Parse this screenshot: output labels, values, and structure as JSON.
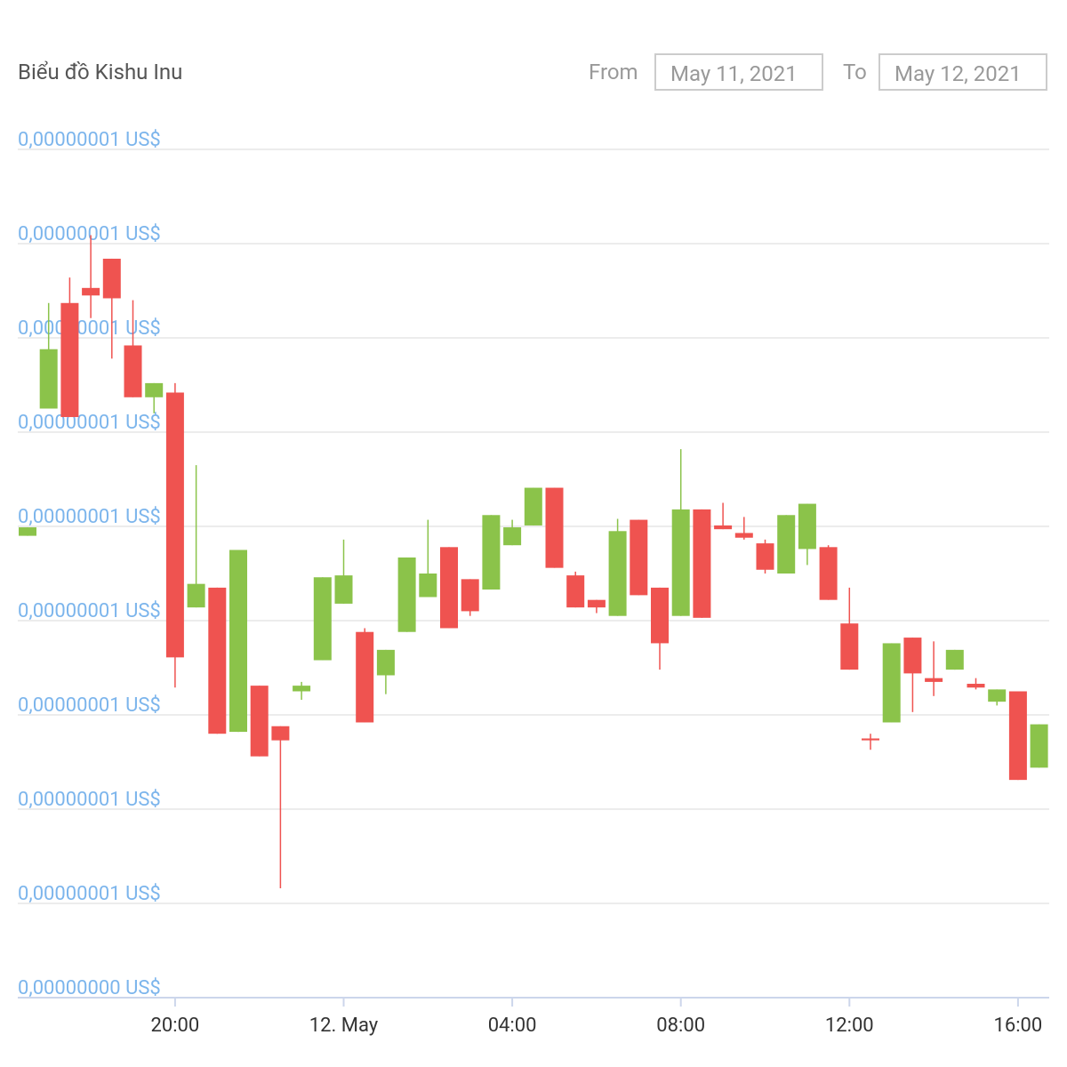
{
  "chart_data": {
    "type": "candlestick",
    "title": "Biểu đồ Kishu Inu",
    "from_label": "From",
    "from": "May 11, 2021",
    "to_label": "To",
    "to": "May 12, 2021",
    "up_color": "#8bc34a",
    "down_color": "#ef5350",
    "grid": true,
    "categories": [
      null,
      null,
      null,
      null,
      null,
      null,
      null,
      "20:00",
      null,
      null,
      null,
      null,
      null,
      null,
      null,
      "12. May",
      null,
      null,
      null,
      null,
      null,
      null,
      null,
      "04:00",
      null,
      null,
      null,
      null,
      null,
      null,
      null,
      "08:00",
      null,
      null,
      null,
      null,
      null,
      null,
      null,
      "12:00",
      null,
      null,
      null,
      null,
      null,
      null,
      null,
      "16:00",
      null
    ],
    "ylim": [
      4.4e-09,
      1.34e-08
    ],
    "yticks": [
      {
        "value": 4.4e-09,
        "label": "0,00000000 US$"
      },
      {
        "value": 5.4e-09,
        "label": "0,00000001 US$"
      },
      {
        "value": 6.4e-09,
        "label": "0,00000001 US$"
      },
      {
        "value": 7.4e-09,
        "label": "0,00000001 US$"
      },
      {
        "value": 8.4e-09,
        "label": "0,00000001 US$"
      },
      {
        "value": 9.4e-09,
        "label": "0,00000001 US$"
      },
      {
        "value": 1.04e-08,
        "label": "0,00000001 US$"
      },
      {
        "value": 1.14e-08,
        "label": "0,00000001 US$"
      },
      {
        "value": 1.24e-08,
        "label": "0,00000001 US$"
      },
      {
        "value": 1.34e-08,
        "label": "0,00000001 US$"
      }
    ],
    "open": [
      9.3e-09,
      1.065e-08,
      1.177e-08,
      1.193e-08,
      1.224e-08,
      1.132e-08,
      1.077e-08,
      1.082e-08,
      8.54e-09,
      8.75e-09,
      7.22e-09,
      7.71e-09,
      7.28e-09,
      7.65e-09,
      7.98e-09,
      8.58e-09,
      8.28e-09,
      7.82e-09,
      8.28e-09,
      8.65e-09,
      9.18e-09,
      8.84e-09,
      8.73e-09,
      9.2e-09,
      9.41e-09,
      9.81e-09,
      8.88e-09,
      8.62e-09,
      8.45e-09,
      9.47e-09,
      8.75e-09,
      8.45e-09,
      9.58e-09,
      9.41e-09,
      9.33e-09,
      9.22e-09,
      8.9e-09,
      9.16e-09,
      9.18e-09,
      8.37e-09,
      7.15e-09,
      7.32e-09,
      8.22e-09,
      7.79e-09,
      7.88e-09,
      7.73e-09,
      7.54e-09,
      7.65e-09,
      6.84e-09
    ],
    "high": [
      9.39e-09,
      1.177e-08,
      1.204e-08,
      1.249e-08,
      1.224e-08,
      1.18e-08,
      1.092e-08,
      1.092e-08,
      1.005e-08,
      8.75e-09,
      9.15e-09,
      7.71e-09,
      7.28e-09,
      7.75e-09,
      8.86e-09,
      9.26e-09,
      8.32e-09,
      8.09e-09,
      9.07e-09,
      9.47e-09,
      9.18e-09,
      8.84e-09,
      9.52e-09,
      9.47e-09,
      9.81e-09,
      9.81e-09,
      8.92e-09,
      8.62e-09,
      9.48e-09,
      9.47e-09,
      8.75e-09,
      1.022e-08,
      9.58e-09,
      9.65e-09,
      9.5e-09,
      9.26e-09,
      9.52e-09,
      9.64e-09,
      9.2e-09,
      8.75e-09,
      7.2e-09,
      8.16e-09,
      8.22e-09,
      8.18e-09,
      8.09e-09,
      7.79e-09,
      7.67e-09,
      7.65e-09,
      7.3e-09
    ],
    "low": [
      9.3e-09,
      1.065e-08,
      1.056e-08,
      1.161e-08,
      1.118e-08,
      1.077e-08,
      1.06e-08,
      7.69e-09,
      8.54e-09,
      7.2e-09,
      7.22e-09,
      6.96e-09,
      5.56e-09,
      7.56e-09,
      7.98e-09,
      8.58e-09,
      7.32e-09,
      7.62e-09,
      8.28e-09,
      8.65e-09,
      8.32e-09,
      8.45e-09,
      8.73e-09,
      9.2e-09,
      9.41e-09,
      8.96e-09,
      8.54e-09,
      8.48e-09,
      8.45e-09,
      8.67e-09,
      7.88e-09,
      8.45e-09,
      8.43e-09,
      9.37e-09,
      9.26e-09,
      8.9e-09,
      8.9e-09,
      8.99e-09,
      8.62e-09,
      7.88e-09,
      7.03e-09,
      7.32e-09,
      7.43e-09,
      7.6e-09,
      7.88e-09,
      7.67e-09,
      7.5e-09,
      6.71e-09,
      6.84e-09
    ],
    "close": [
      9.39e-09,
      1.128e-08,
      1.056e-08,
      1.185e-08,
      1.182e-08,
      1.077e-08,
      1.092e-08,
      8.01e-09,
      8.79e-09,
      7.2e-09,
      9.15e-09,
      6.96e-09,
      7.13e-09,
      7.71e-09,
      8.86e-09,
      8.88e-09,
      7.32e-09,
      8.09e-09,
      9.07e-09,
      8.9e-09,
      8.32e-09,
      8.5e-09,
      9.52e-09,
      9.39e-09,
      9.81e-09,
      8.96e-09,
      8.54e-09,
      8.54e-09,
      9.35e-09,
      8.67e-09,
      8.16e-09,
      9.58e-09,
      8.43e-09,
      9.37e-09,
      9.28e-09,
      8.94e-09,
      9.52e-09,
      9.64e-09,
      8.62e-09,
      7.88e-09,
      7.13e-09,
      8.16e-09,
      7.84e-09,
      7.75e-09,
      8.09e-09,
      7.69e-09,
      7.67e-09,
      6.71e-09,
      7.3e-09
    ]
  }
}
